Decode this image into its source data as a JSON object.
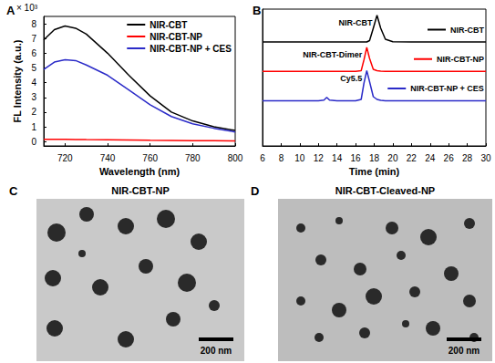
{
  "chart_data": [
    {
      "type": "line",
      "title": "A",
      "x": [
        710,
        715,
        720,
        725,
        730,
        740,
        750,
        760,
        770,
        780,
        790,
        800
      ],
      "xlim": [
        710,
        800
      ],
      "xticks": [
        720,
        740,
        760,
        780,
        800
      ],
      "ylim": [
        -0.3,
        8.5
      ],
      "yticks": [
        0,
        1,
        2,
        3,
        4,
        5,
        6,
        7,
        8
      ],
      "xlabel": "Wavelength (nm)",
      "ylabel": "FL Intensity (a.u.)",
      "annotations": [
        {
          "text": "× 10³"
        }
      ],
      "legend": "upper right",
      "grid": false,
      "series": [
        {
          "name": "NIR-CBT",
          "color": "#000000",
          "values": [
            6.9,
            7.6,
            7.85,
            7.7,
            7.3,
            6.0,
            4.5,
            3.1,
            2.0,
            1.4,
            1.0,
            0.75
          ]
        },
        {
          "name": "NIR-CBT-NP",
          "color": "#ff0000",
          "values": [
            0.15,
            0.15,
            0.15,
            0.14,
            0.13,
            0.12,
            0.1,
            0.08,
            0.07,
            0.05,
            0.05,
            0.04
          ]
        },
        {
          "name": "NIR-CBT-NP + CES",
          "color": "#2b2bc8",
          "values": [
            4.9,
            5.4,
            5.55,
            5.5,
            5.2,
            4.5,
            3.5,
            2.5,
            1.7,
            1.2,
            0.9,
            0.65
          ]
        }
      ]
    },
    {
      "type": "line",
      "title": "B",
      "x": [
        6,
        8,
        10,
        12,
        12.6,
        12.9,
        13.2,
        14,
        15,
        16,
        16.6,
        16.9,
        17.2,
        17.5,
        17.9,
        18.3,
        18.7,
        19.2,
        20,
        22,
        24,
        26,
        28,
        30
      ],
      "xlim": [
        6,
        30
      ],
      "xticks": [
        6,
        8,
        10,
        12,
        14,
        16,
        18,
        20,
        22,
        24,
        26,
        28,
        30
      ],
      "ylim": [
        0,
        10
      ],
      "xlabel": "Time (min)",
      "tick_labels": "x",
      "legend": "right",
      "grid": false,
      "annotations": [
        {
          "text": "NIR-CBT",
          "series": "NIR-CBT"
        },
        {
          "text": "NIR-CBT-Dimer",
          "series": "NIR-CBT-NP"
        },
        {
          "text": "Cy5.5",
          "series": "NIR-CBT-NP + CES"
        }
      ],
      "series": [
        {
          "name": "NIR-CBT",
          "color": "#000000",
          "values": [
            7.6,
            7.6,
            7.6,
            7.6,
            7.6,
            7.6,
            7.6,
            7.6,
            7.6,
            7.6,
            7.6,
            7.6,
            7.6,
            7.7,
            8.6,
            9.55,
            8.6,
            7.8,
            7.62,
            7.6,
            7.6,
            7.6,
            7.6,
            7.6
          ]
        },
        {
          "name": "NIR-CBT-NP",
          "color": "#ff0000",
          "values": [
            5.45,
            5.45,
            5.45,
            5.45,
            5.45,
            5.45,
            5.45,
            5.45,
            5.45,
            5.45,
            5.5,
            6.3,
            7.2,
            6.4,
            5.6,
            5.5,
            5.47,
            5.45,
            5.45,
            5.45,
            5.45,
            5.45,
            5.45,
            5.45
          ]
        },
        {
          "name": "NIR-CBT-NP + CES",
          "color": "#2b2bc8",
          "values": [
            3.3,
            3.3,
            3.3,
            3.3,
            3.35,
            3.55,
            3.35,
            3.3,
            3.3,
            3.3,
            3.4,
            4.6,
            5.5,
            4.7,
            3.6,
            3.4,
            3.33,
            3.3,
            3.3,
            3.3,
            3.3,
            3.3,
            3.3,
            3.3
          ]
        }
      ]
    }
  ],
  "images": [
    {
      "label": "C",
      "title": "NIR-CBT-NP",
      "scale_bar": "200 nm"
    },
    {
      "label": "D",
      "title": "NIR-CBT-Cleaved-NP",
      "scale_bar": "200 nm"
    }
  ]
}
